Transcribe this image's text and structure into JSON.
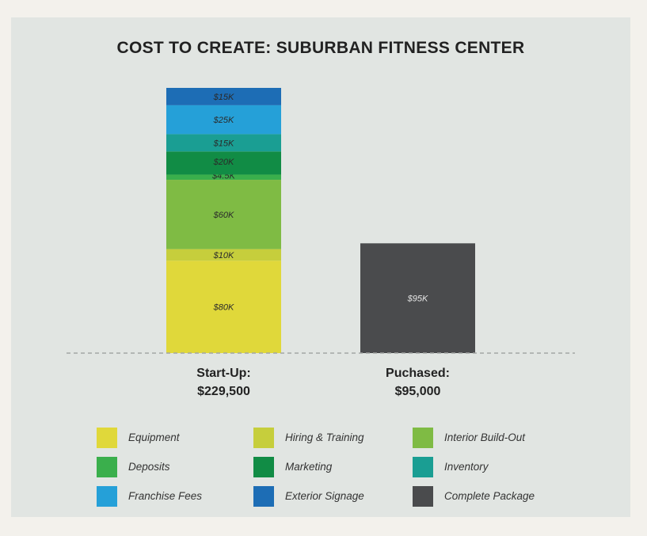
{
  "chart_data": {
    "type": "bar",
    "stacked": true,
    "title": "COST TO CREATE: SUBURBAN FITNESS CENTER",
    "categories": [
      {
        "name": "Start-Up:",
        "total_label": "$229,500"
      },
      {
        "name": "Puchased:",
        "total_label": "$95,000"
      }
    ],
    "series": [
      {
        "name": "Equipment",
        "color": "#e0d83a",
        "values": [
          80,
          0
        ],
        "labels": [
          "$80K",
          ""
        ]
      },
      {
        "name": "Hiring & Training",
        "color": "#c6ce3c",
        "values": [
          10,
          0
        ],
        "labels": [
          "$10K",
          ""
        ]
      },
      {
        "name": "Interior Build-Out",
        "color": "#7fbb44",
        "values": [
          60,
          0
        ],
        "labels": [
          "$60K",
          ""
        ]
      },
      {
        "name": "Deposits",
        "color": "#3aaf4c",
        "values": [
          4.5,
          0
        ],
        "labels": [
          "$4.5K",
          ""
        ]
      },
      {
        "name": "Marketing",
        "color": "#118c45",
        "values": [
          20,
          0
        ],
        "labels": [
          "$20K",
          ""
        ]
      },
      {
        "name": "Inventory",
        "color": "#1a9e93",
        "values": [
          15,
          0
        ],
        "labels": [
          "$15K",
          ""
        ]
      },
      {
        "name": "Franchise Fees",
        "color": "#25a0d8",
        "values": [
          25,
          0
        ],
        "labels": [
          "$25K",
          ""
        ]
      },
      {
        "name": "Exterior Signage",
        "color": "#1d6db5",
        "values": [
          15,
          0
        ],
        "labels": [
          "$15K",
          ""
        ]
      },
      {
        "name": "Complete Package",
        "color": "#4a4b4d",
        "values": [
          0,
          95
        ],
        "labels": [
          "",
          "$95K"
        ]
      }
    ],
    "ylim": [
      0,
      229.5
    ],
    "grid": false,
    "legend_position": "bottom"
  }
}
